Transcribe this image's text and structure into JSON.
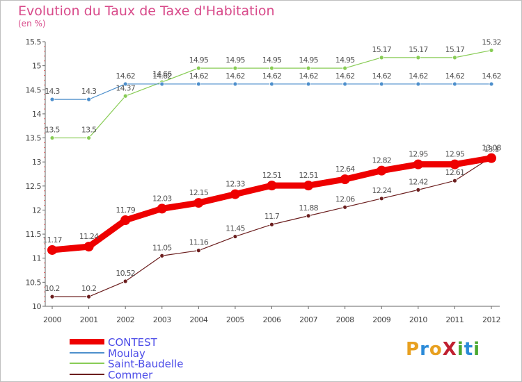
{
  "title": "Evolution du Taux de Taxe d'Habitation",
  "unit": "(en %)",
  "logo": {
    "text": "ProXiti",
    "letters": [
      "P",
      "r",
      "o",
      "X",
      "i",
      "t",
      "i"
    ],
    "colors": [
      "#e8a020",
      "#2a8ad8",
      "#e8a020",
      "#c02030",
      "#4aa830",
      "#2a8ad8",
      "#4aa830"
    ]
  },
  "chart_data": {
    "type": "line",
    "title": "Evolution du Taux de Taxe d'Habitation",
    "ylabel": "(en %)",
    "xlabel": "",
    "x": [
      "2000",
      "2001",
      "2002",
      "2003",
      "2004",
      "2005",
      "2006",
      "2007",
      "2008",
      "2009",
      "2010",
      "2011",
      "2012"
    ],
    "ylim": [
      10,
      15.5
    ],
    "yticks": [
      "10",
      "10.5",
      "11",
      "11.5",
      "12",
      "12.5",
      "13",
      "13.5",
      "14",
      "14.5",
      "15",
      "15.5"
    ],
    "grid": false,
    "legend_position": "bottom-left",
    "series": [
      {
        "name": "CONTEST",
        "color": "#ee0000",
        "values": [
          11.17,
          11.24,
          11.79,
          12.03,
          12.15,
          12.33,
          12.51,
          12.51,
          12.64,
          12.82,
          12.95,
          12.95,
          13.08
        ],
        "labels": [
          "11.17",
          "11.24",
          "11.79",
          "12.03",
          "12.15",
          "12.33",
          "12.51",
          "12.51",
          "12.64",
          "12.82",
          "12.95",
          "12.95",
          "13.08"
        ]
      },
      {
        "name": "Moulay",
        "color": "#4d8fcc",
        "values": [
          14.3,
          14.3,
          14.62,
          14.62,
          14.62,
          14.62,
          14.62,
          14.62,
          14.62,
          14.62,
          14.62,
          14.62,
          14.62
        ],
        "labels": [
          "14.3",
          "14.3",
          "14.62",
          "14.62",
          "14.62",
          "14.62",
          "14.62",
          "14.62",
          "14.62",
          "14.62",
          "14.62",
          "14.62",
          "14.62"
        ]
      },
      {
        "name": "Saint-Baudelle",
        "color": "#88cc55",
        "values": [
          13.5,
          13.5,
          14.37,
          14.66,
          14.95,
          14.95,
          14.95,
          14.95,
          14.95,
          15.17,
          15.17,
          15.17,
          15.32
        ],
        "labels": [
          "13.5",
          "13.5",
          "14.37",
          "14.66",
          "14.95",
          "14.95",
          "14.95",
          "14.95",
          "14.95",
          "15.17",
          "15.17",
          "15.17",
          "15.32"
        ]
      },
      {
        "name": "Commer",
        "color": "#6b1e1e",
        "values": [
          10.2,
          10.2,
          10.52,
          11.05,
          11.16,
          11.45,
          11.7,
          11.88,
          12.06,
          12.24,
          12.42,
          12.61,
          13.1
        ],
        "labels": [
          "10.2",
          "10.2",
          "10.52",
          "11.05",
          "11.16",
          "11.45",
          "11.7",
          "11.88",
          "12.06",
          "12.24",
          "12.42",
          "12.61",
          "13.1"
        ]
      }
    ]
  }
}
